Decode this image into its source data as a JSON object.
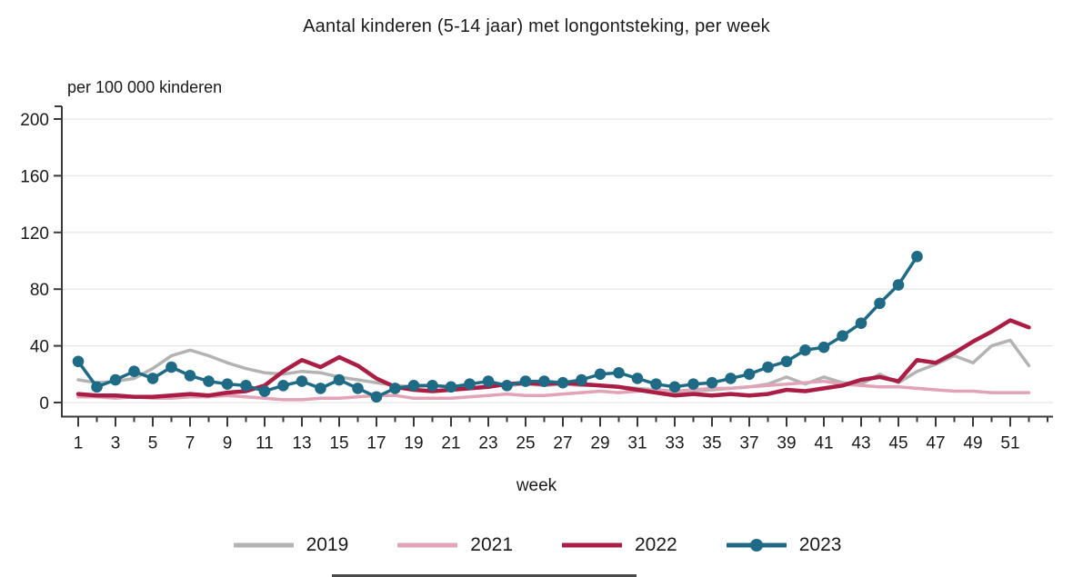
{
  "title": "Aantal kinderen (5-14 jaar) met longontsteking, per week",
  "chart_data": {
    "type": "line",
    "title": "Aantal kinderen (5-14 jaar) met longontsteking, per week",
    "ylabel": "per 100 000 kinderen",
    "xlabel": "week",
    "ylim": [
      0,
      200
    ],
    "yticks": [
      0,
      40,
      80,
      120,
      160,
      200
    ],
    "xticks": [
      1,
      3,
      5,
      7,
      9,
      11,
      13,
      15,
      17,
      19,
      21,
      23,
      25,
      27,
      29,
      31,
      33,
      35,
      37,
      39,
      41,
      43,
      45,
      47,
      49,
      51
    ],
    "x_range": [
      1,
      52
    ],
    "grid": true,
    "legend_position": "bottom",
    "colors": {
      "grid": "#e7e7e7",
      "axis": "#3a3a3a",
      "s2019": "#b3b3b3",
      "s2021": "#e1a3b5",
      "s2022": "#aa1e45",
      "s2023": "#1f6b85"
    },
    "series": [
      {
        "name": "2019",
        "color": "#b3b3b3",
        "marker": false,
        "start_week": 1,
        "values": [
          16,
          14,
          15,
          17,
          24,
          33,
          37,
          33,
          28,
          24,
          21,
          20,
          22,
          21,
          18,
          16,
          14,
          12,
          11,
          12,
          11,
          10,
          12,
          12,
          13,
          12,
          13,
          12,
          12,
          11,
          10,
          9,
          7,
          8,
          9,
          10,
          11,
          13,
          18,
          13,
          18,
          14,
          13,
          20,
          14,
          22,
          27,
          33,
          28,
          40,
          44,
          26
        ]
      },
      {
        "name": "2021",
        "color": "#e1a3b5",
        "marker": false,
        "start_week": 1,
        "values": [
          4,
          4,
          3,
          4,
          3,
          3,
          4,
          4,
          5,
          4,
          3,
          2,
          2,
          3,
          3,
          4,
          5,
          5,
          3,
          3,
          3,
          4,
          5,
          6,
          5,
          5,
          6,
          7,
          8,
          7,
          8,
          9,
          8,
          9,
          10,
          10,
          11,
          12,
          13,
          14,
          15,
          13,
          12,
          11,
          11,
          10,
          9,
          8,
          8,
          7,
          7,
          7
        ]
      },
      {
        "name": "2022",
        "color": "#aa1e45",
        "marker": false,
        "start_week": 1,
        "values": [
          6,
          5,
          5,
          4,
          4,
          5,
          6,
          5,
          7,
          8,
          12,
          22,
          30,
          25,
          32,
          26,
          17,
          11,
          9,
          8,
          9,
          10,
          11,
          13,
          14,
          13,
          14,
          13,
          12,
          11,
          9,
          7,
          5,
          6,
          5,
          6,
          5,
          6,
          9,
          8,
          10,
          12,
          16,
          18,
          15,
          30,
          28,
          35,
          43,
          50,
          58,
          53
        ]
      },
      {
        "name": "2023",
        "color": "#1f6b85",
        "marker": true,
        "start_week": 1,
        "values": [
          29,
          11,
          16,
          22,
          17,
          25,
          19,
          15,
          13,
          12,
          8,
          12,
          15,
          10,
          16,
          10,
          4,
          10,
          12,
          12,
          11,
          13,
          15,
          12,
          15,
          15,
          14,
          16,
          20,
          21,
          17,
          13,
          11,
          13,
          14,
          17,
          20,
          25,
          29,
          37,
          39,
          47,
          56,
          70,
          83,
          103
        ]
      }
    ]
  }
}
